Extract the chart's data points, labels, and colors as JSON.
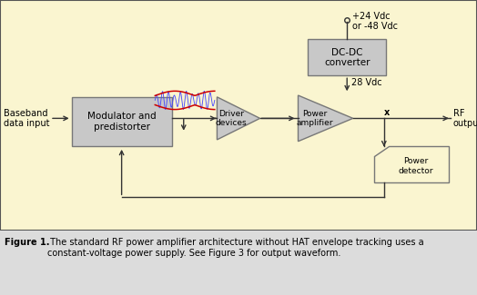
{
  "bg_color": "#FAF5D0",
  "border_color": "#555555",
  "box_fill": "#C8C8C8",
  "box_edge": "#777777",
  "arrow_color": "#333333",
  "title_bold": "Figure 1.",
  "title_rest": " The standard RF power amplifier architecture without HAT envelope tracking uses a\nconstant-voltage power supply. See Figure 3 for output waveform.",
  "label_baseband": "Baseband\ndata input",
  "label_modulator": "Modulator and\npredistorter",
  "label_driver": "Driver\ndevices",
  "label_power_amp": "Power\namplifier",
  "label_dc_dc": "DC-DC\nconverter",
  "label_power_detector": "Power\ndetector",
  "label_rf_output": "RF\noutput",
  "label_28vdc": "28 Vdc",
  "label_supply": "+24 Vdc\nor -48 Vdc",
  "label_x": "x",
  "fig_width": 5.24,
  "fig_height": 3.25,
  "dpi": 100
}
